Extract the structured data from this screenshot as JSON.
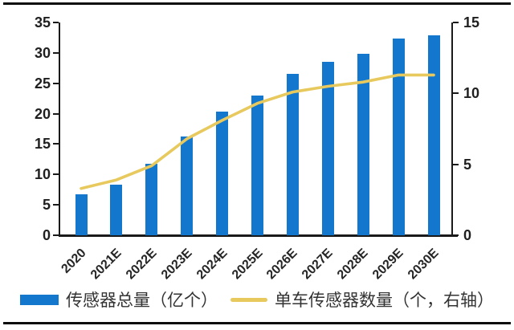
{
  "chart_data": {
    "type": "combo",
    "subtype": "bar+line",
    "title": "",
    "categories": [
      "2020",
      "2021E",
      "2022E",
      "2023E",
      "2024E",
      "2025E",
      "2026E",
      "2027E",
      "2028E",
      "2029E",
      "2030E"
    ],
    "series": [
      {
        "name": "传感器总量（亿个）",
        "type": "bar",
        "axis": "left",
        "color": "#1477CE",
        "values": [
          6.8,
          8.3,
          11.8,
          16.2,
          20.4,
          23.0,
          26.6,
          28.5,
          29.8,
          32.3,
          32.9
        ]
      },
      {
        "name": "单车传感器数量（个，右轴）",
        "type": "line",
        "axis": "right",
        "color": "#E7C95E",
        "values": [
          3.3,
          3.9,
          4.9,
          6.8,
          8.1,
          9.3,
          10.1,
          10.5,
          10.8,
          11.3,
          11.3
        ]
      }
    ],
    "left_axis": {
      "min": 0,
      "max": 35,
      "step": 5,
      "ticks": [
        0,
        5,
        10,
        15,
        20,
        25,
        30,
        35
      ]
    },
    "right_axis": {
      "min": 0,
      "max": 15,
      "step": 5,
      "ticks": [
        0,
        5,
        10,
        15
      ]
    },
    "grid": false,
    "legend_position": "bottom",
    "x_label_rotation_deg": -45
  },
  "colors": {
    "bar": "#1477CE",
    "line": "#E7C95E",
    "axis": "#1a1a1a",
    "tick_text": "#1f1f1f",
    "legend_text": "#333333",
    "border_rule": "#0d0d0d",
    "background": "#ffffff"
  }
}
